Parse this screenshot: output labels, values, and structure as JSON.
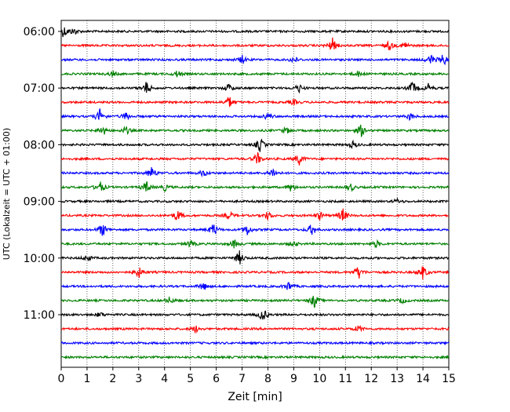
{
  "chart_data": {
    "type": "line",
    "xlabel": "Zeit  [min]",
    "ylabel": "UTC (Lokalzeit = UTC + 01:00)",
    "xlim": [
      0,
      15
    ],
    "x_ticks": [
      "0",
      "1",
      "2",
      "3",
      "4",
      "5",
      "6",
      "7",
      "8",
      "9",
      "10",
      "11",
      "12",
      "13",
      "14",
      "15"
    ],
    "y_ticks": [
      "06:00",
      "07:00",
      "08:00",
      "09:00",
      "10:00",
      "11:00"
    ],
    "vertical_grid": true,
    "trace_colors": [
      "#000000",
      "#ff0000",
      "#0000ff",
      "#008000"
    ],
    "traces": [
      {
        "start": "06:00",
        "color": "#000000",
        "events": [
          [
            0.1,
            0.9
          ],
          [
            0.5,
            0.5
          ]
        ]
      },
      {
        "start": "06:15",
        "color": "#ff0000",
        "events": [
          [
            10.5,
            1.0
          ],
          [
            12.7,
            0.7
          ],
          [
            13.3,
            0.5
          ]
        ]
      },
      {
        "start": "06:30",
        "color": "#0000ff",
        "events": [
          [
            7.0,
            0.6
          ],
          [
            9.0,
            0.5
          ],
          [
            14.3,
            0.8
          ],
          [
            14.8,
            0.9
          ]
        ]
      },
      {
        "start": "06:45",
        "color": "#008000",
        "events": [
          [
            2.0,
            0.4
          ],
          [
            4.5,
            0.5
          ],
          [
            11.5,
            0.4
          ]
        ]
      },
      {
        "start": "07:00",
        "color": "#000000",
        "events": [
          [
            3.3,
            0.9
          ],
          [
            6.5,
            0.6
          ],
          [
            9.2,
            0.6
          ],
          [
            13.6,
            1.0
          ],
          [
            14.2,
            0.6
          ]
        ]
      },
      {
        "start": "07:15",
        "color": "#ff0000",
        "events": [
          [
            6.5,
            0.9
          ],
          [
            9.0,
            0.4
          ]
        ]
      },
      {
        "start": "07:30",
        "color": "#0000ff",
        "events": [
          [
            1.5,
            1.0
          ],
          [
            2.5,
            0.6
          ],
          [
            8.0,
            0.5
          ],
          [
            13.5,
            0.5
          ]
        ]
      },
      {
        "start": "07:45",
        "color": "#008000",
        "events": [
          [
            1.6,
            0.8
          ],
          [
            2.5,
            0.6
          ],
          [
            8.7,
            0.5
          ],
          [
            11.6,
            0.9
          ]
        ]
      },
      {
        "start": "08:00",
        "color": "#000000",
        "events": [
          [
            7.7,
            1.0
          ],
          [
            11.3,
            0.5
          ]
        ]
      },
      {
        "start": "08:15",
        "color": "#ff0000",
        "events": [
          [
            7.6,
            0.9
          ],
          [
            9.2,
            0.9
          ]
        ]
      },
      {
        "start": "08:30",
        "color": "#0000ff",
        "events": [
          [
            3.5,
            0.9
          ],
          [
            5.5,
            0.5
          ],
          [
            8.2,
            0.7
          ]
        ]
      },
      {
        "start": "08:45",
        "color": "#008000",
        "events": [
          [
            1.5,
            0.9
          ],
          [
            3.3,
            0.9
          ],
          [
            4.0,
            0.5
          ],
          [
            8.9,
            0.6
          ],
          [
            11.2,
            0.6
          ]
        ]
      },
      {
        "start": "09:00",
        "color": "#000000",
        "events": [
          [
            13.0,
            0.3
          ]
        ]
      },
      {
        "start": "09:15",
        "color": "#ff0000",
        "events": [
          [
            4.5,
            0.9
          ],
          [
            6.5,
            0.6
          ],
          [
            8.0,
            0.6
          ],
          [
            10.0,
            0.6
          ],
          [
            10.9,
            1.0
          ]
        ]
      },
      {
        "start": "09:30",
        "color": "#0000ff",
        "events": [
          [
            1.6,
            1.0
          ],
          [
            5.9,
            1.0
          ],
          [
            7.2,
            0.8
          ],
          [
            9.7,
            0.9
          ]
        ]
      },
      {
        "start": "09:45",
        "color": "#008000",
        "events": [
          [
            5.0,
            0.5
          ],
          [
            6.7,
            0.6
          ],
          [
            9.0,
            0.4
          ],
          [
            12.2,
            0.5
          ]
        ]
      },
      {
        "start": "10:00",
        "color": "#000000",
        "events": [
          [
            1.0,
            0.5
          ],
          [
            6.9,
            1.0
          ]
        ]
      },
      {
        "start": "10:15",
        "color": "#ff0000",
        "events": [
          [
            3.0,
            0.8
          ],
          [
            11.5,
            1.0
          ],
          [
            14.0,
            1.0
          ]
        ]
      },
      {
        "start": "10:30",
        "color": "#0000ff",
        "events": [
          [
            5.5,
            0.6
          ],
          [
            8.8,
            0.7
          ]
        ]
      },
      {
        "start": "10:45",
        "color": "#008000",
        "events": [
          [
            4.2,
            0.5
          ],
          [
            9.8,
            1.0
          ],
          [
            13.2,
            0.4
          ]
        ]
      },
      {
        "start": "11:00",
        "color": "#000000",
        "events": [
          [
            1.5,
            0.4
          ],
          [
            7.8,
            1.0
          ]
        ]
      },
      {
        "start": "11:15",
        "color": "#ff0000",
        "events": [
          [
            5.2,
            0.5
          ],
          [
            11.5,
            0.5
          ]
        ]
      },
      {
        "start": "11:30",
        "color": "#0000ff",
        "events": []
      },
      {
        "start": "11:45",
        "color": "#008000",
        "events": []
      }
    ]
  }
}
